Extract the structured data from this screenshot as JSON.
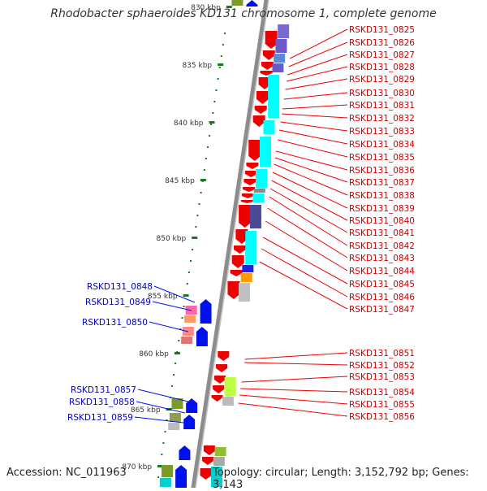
{
  "title": "Rhodobacter sphaeroides KD131 chromosome 1, complete genome",
  "footer": {
    "accession": "Accession: NC_011963",
    "topology": "Topology: circular; Length: 3,152,792 bp; Genes: 3,143"
  },
  "colors": {
    "backbone": "#8c8c8c",
    "forward_label": "#cc0000",
    "reverse_label": "#0000bb",
    "tick": "#1a7a1a"
  },
  "kbp_ticks": [
    "830 kbp",
    "835 kbp",
    "840 kbp",
    "845 kbp",
    "850 kbp",
    "855 kbp",
    "860 kbp",
    "865 kbp",
    "870 kbp"
  ],
  "right_labels": [
    "RSKD131_0825",
    "RSKD131_0826",
    "RSKD131_0827",
    "RSKD131_0828",
    "RSKD131_0829",
    "RSKD131_0830",
    "RSKD131_0831",
    "RSKD131_0832",
    "RSKD131_0833",
    "RSKD131_0834",
    "RSKD131_0835",
    "RSKD131_0836",
    "RSKD131_0837",
    "RSKD131_0838",
    "RSKD131_0839",
    "RSKD131_0840",
    "RSKD131_0841",
    "RSKD131_0842",
    "RSKD131_0843",
    "RSKD131_0844",
    "RSKD131_0845",
    "RSKD131_0846",
    "RSKD131_0847",
    "RSKD131_0851",
    "RSKD131_0852",
    "RSKD131_0853",
    "RSKD131_0854",
    "RSKD131_0855",
    "RSKD131_0856"
  ],
  "left_labels": [
    "RSKD131_0848",
    "RSKD131_0849",
    "RSKD131_0850",
    "RSKD131_0857",
    "RSKD131_0858",
    "RSKD131_0859"
  ]
}
